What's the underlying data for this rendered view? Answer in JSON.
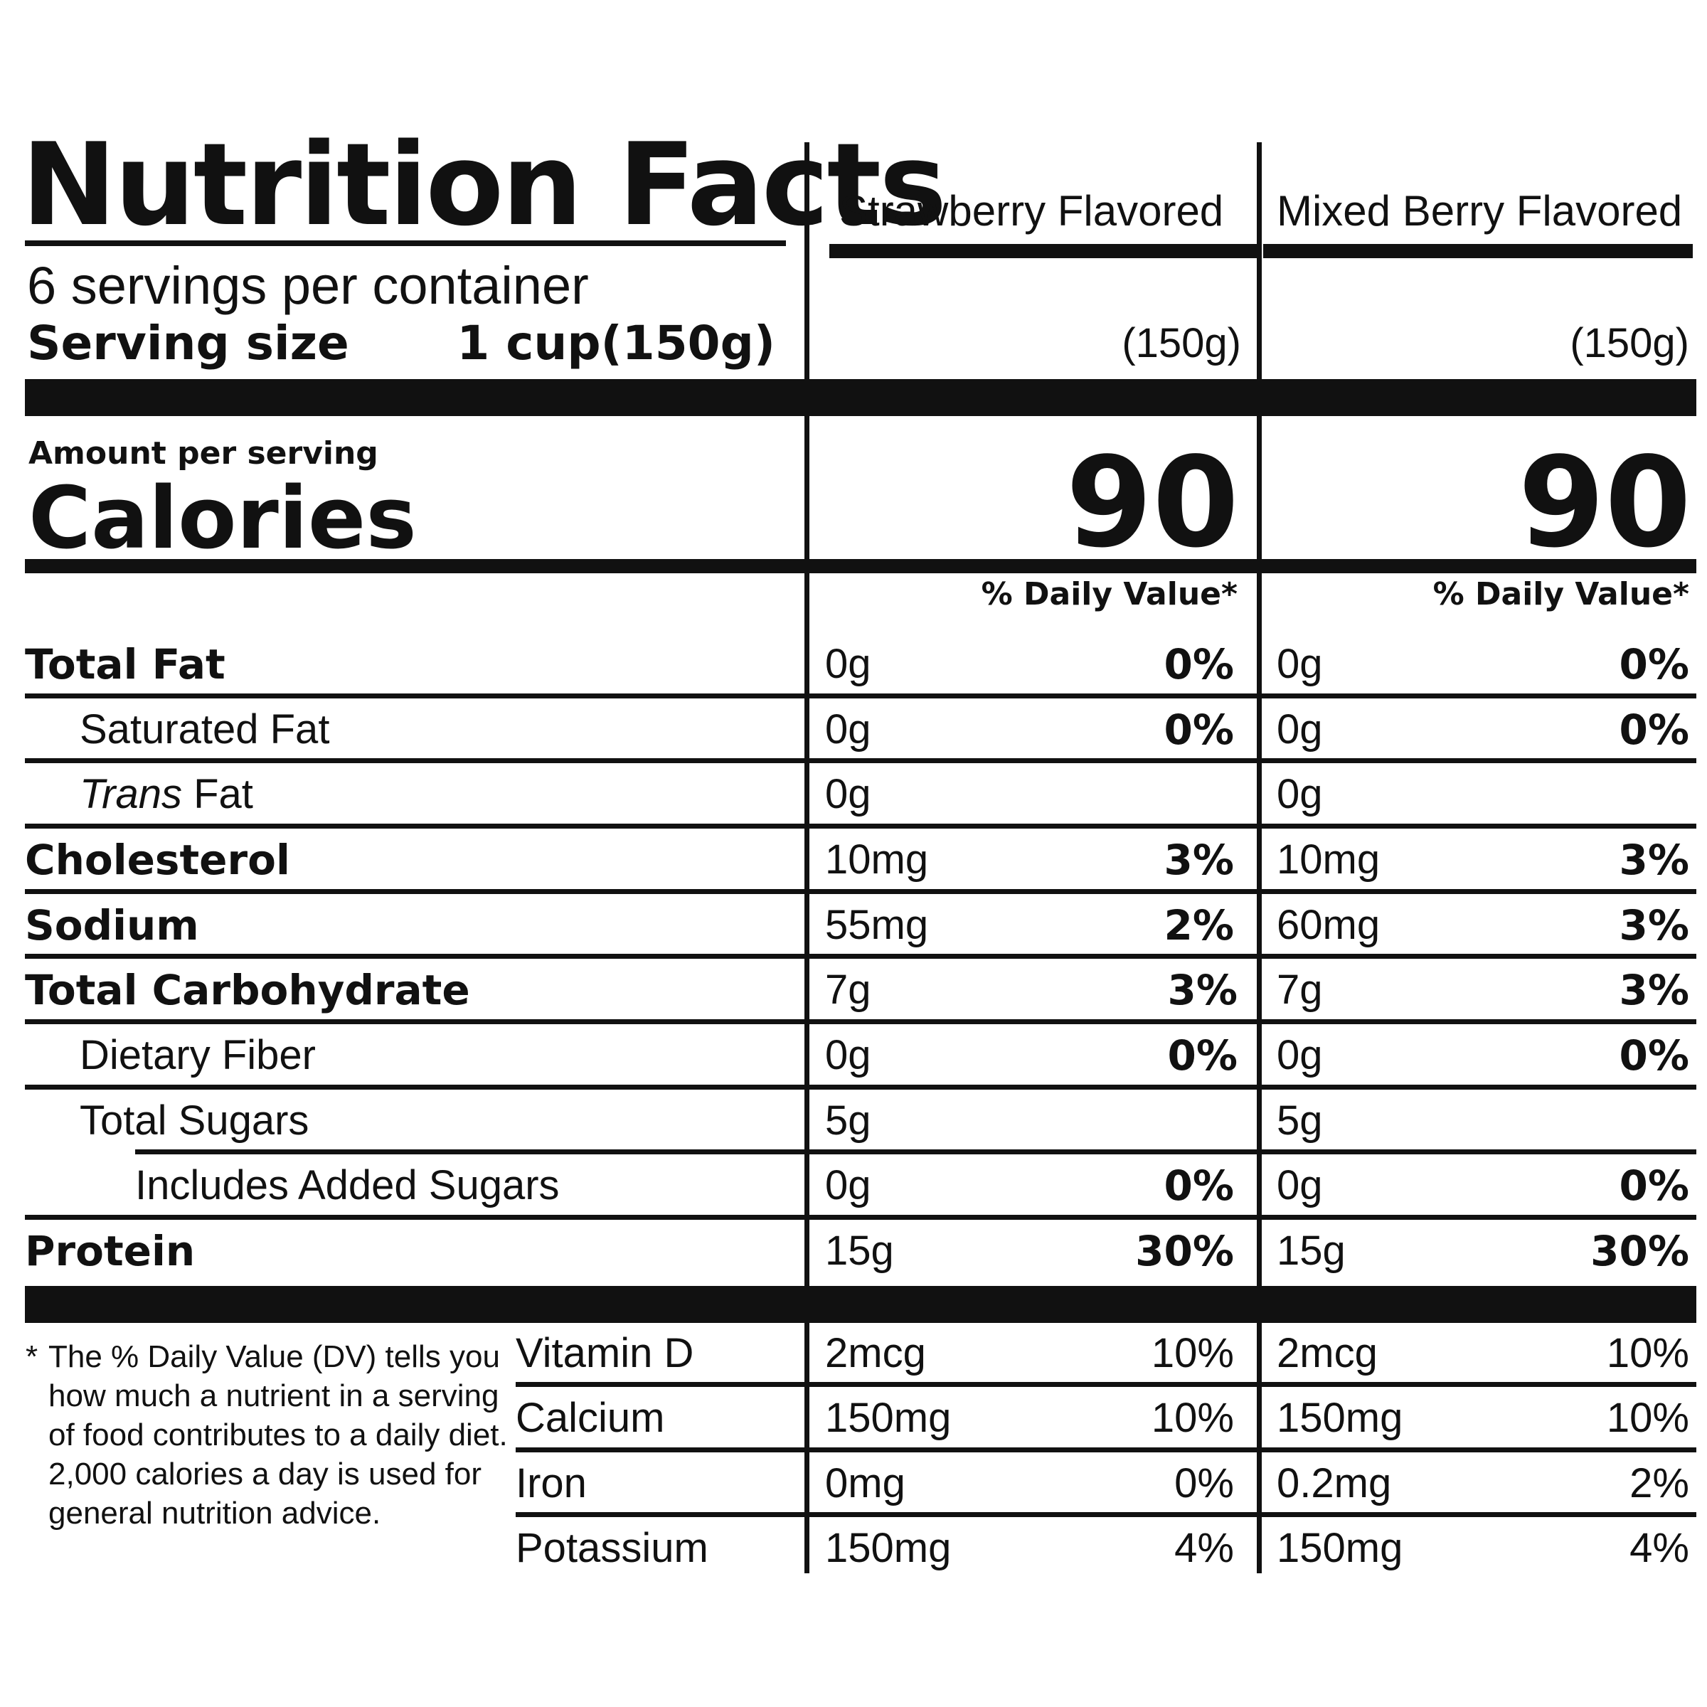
{
  "header": {
    "title": "Nutrition Facts",
    "servings_per_container": "6 servings per container",
    "serving_size_label": "Serving size",
    "serving_size_value": "1 cup(150g)"
  },
  "columns": [
    {
      "name": "Strawberry Flavored",
      "size": "(150g)",
      "calories": "90",
      "dv_header": "% Daily Value*"
    },
    {
      "name": "Mixed Berry Flavored",
      "size": "(150g)",
      "calories": "90",
      "dv_header": "% Daily Value*"
    }
  ],
  "calories": {
    "amount_label": "Amount per serving",
    "label": "Calories"
  },
  "nutrients": [
    {
      "label": "Total Fat",
      "values": [
        {
          "qty": "0g",
          "dv": "0%"
        },
        {
          "qty": "0g",
          "dv": "0%"
        }
      ]
    },
    {
      "label": "Saturated Fat",
      "values": [
        {
          "qty": "0g",
          "dv": "0%"
        },
        {
          "qty": "0g",
          "dv": "0%"
        }
      ]
    },
    {
      "label_italic": "Trans",
      "label": " Fat",
      "values": [
        {
          "qty": "0g",
          "dv": ""
        },
        {
          "qty": "0g",
          "dv": ""
        }
      ]
    },
    {
      "label": "Cholesterol",
      "values": [
        {
          "qty": "10mg",
          "dv": "3%"
        },
        {
          "qty": "10mg",
          "dv": "3%"
        }
      ]
    },
    {
      "label": "Sodium",
      "values": [
        {
          "qty": "55mg",
          "dv": "2%"
        },
        {
          "qty": "60mg",
          "dv": "3%"
        }
      ]
    },
    {
      "label": "Total Carbohydrate",
      "values": [
        {
          "qty": "7g",
          "dv": "3%"
        },
        {
          "qty": "7g",
          "dv": "3%"
        }
      ]
    },
    {
      "label": "Dietary Fiber",
      "values": [
        {
          "qty": "0g",
          "dv": "0%"
        },
        {
          "qty": "0g",
          "dv": "0%"
        }
      ]
    },
    {
      "label": "Total Sugars",
      "values": [
        {
          "qty": "5g",
          "dv": ""
        },
        {
          "qty": "5g",
          "dv": ""
        }
      ]
    },
    {
      "label": "Includes Added Sugars",
      "values": [
        {
          "qty": "0g",
          "dv": "0%"
        },
        {
          "qty": "0g",
          "dv": "0%"
        }
      ]
    },
    {
      "label": "Protein",
      "values": [
        {
          "qty": "15g",
          "dv": "30%"
        },
        {
          "qty": "15g",
          "dv": "30%"
        }
      ]
    }
  ],
  "micronutrients": [
    {
      "label": "Vitamin D",
      "values": [
        {
          "qty": "2mcg",
          "dv": "10%"
        },
        {
          "qty": "2mcg",
          "dv": "10%"
        }
      ]
    },
    {
      "label": "Calcium",
      "values": [
        {
          "qty": "150mg",
          "dv": "10%"
        },
        {
          "qty": "150mg",
          "dv": "10%"
        }
      ]
    },
    {
      "label": "Iron",
      "values": [
        {
          "qty": "0mg",
          "dv": "0%"
        },
        {
          "qty": "0.2mg",
          "dv": "2%"
        }
      ]
    },
    {
      "label": "Potassium",
      "values": [
        {
          "qty": "150mg",
          "dv": "4%"
        },
        {
          "qty": "150mg",
          "dv": "4%"
        }
      ]
    }
  ],
  "footnote": {
    "marker": "*",
    "text": "The % Daily Value (DV) tells you how much a nutrient in a serving of food contributes to a daily diet. 2,000 calories a day is used for general nutrition advice."
  }
}
